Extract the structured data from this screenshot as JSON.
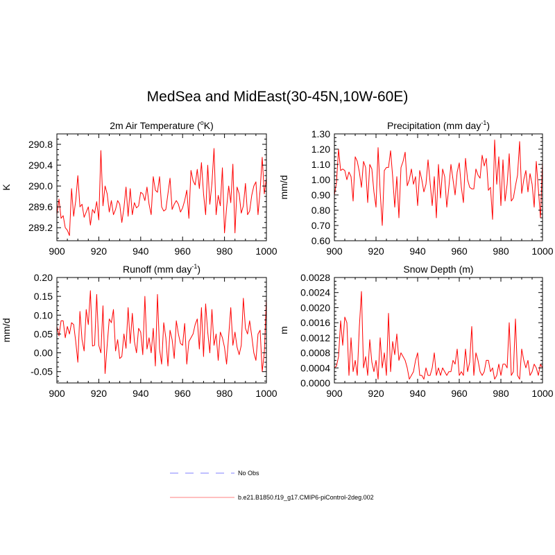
{
  "title": "MedSea and MidEast(30-45N,10W-60E)",
  "colors": {
    "series": "#ff0000",
    "obs": "#9999ff",
    "axes": "#000000"
  },
  "legend": {
    "obs_label": "No Obs",
    "model_label": "b.e21.B1850.f19_g17.CMIP6-piControl-2deg.002"
  },
  "chart_data": [
    {
      "type": "line",
      "title_main": "2m Air Temperature (",
      "title_sup": "o",
      "title_tail": "K)",
      "ylabel": "K",
      "xlim": [
        900,
        1000
      ],
      "ylim": [
        288.95,
        291.0
      ],
      "xticks": [
        "900",
        "920",
        "940",
        "960",
        "980",
        "1000"
      ],
      "yticks": [
        "289.2",
        "289.6",
        "290.0",
        "290.4",
        "290.8"
      ],
      "x_start": 900,
      "values": [
        289.45,
        289.75,
        289.38,
        289.43,
        289.2,
        289.15,
        289.05,
        289.95,
        289.42,
        289.72,
        290.2,
        289.6,
        289.65,
        289.4,
        289.5,
        289.6,
        289.25,
        289.55,
        289.48,
        289.7,
        289.35,
        290.68,
        289.62,
        290.0,
        289.85,
        289.5,
        289.72,
        289.45,
        289.55,
        289.72,
        289.65,
        289.3,
        289.58,
        289.98,
        289.42,
        289.95,
        289.45,
        289.68,
        289.58,
        289.62,
        289.88,
        289.85,
        289.72,
        289.98,
        289.65,
        289.45,
        290.18,
        289.92,
        289.88,
        290.18,
        289.6,
        289.52,
        289.55,
        289.85,
        290.15,
        289.55,
        289.65,
        289.72,
        289.65,
        289.5,
        289.58,
        289.72,
        289.92,
        289.38,
        290.3,
        290.1,
        290.02,
        290.32,
        289.95,
        290.45,
        289.85,
        289.45,
        290.4,
        289.65,
        290.05,
        290.72,
        289.45,
        289.82,
        289.62,
        290.35,
        289.1,
        289.58,
        290.0,
        289.68,
        290.42,
        289.1,
        289.98,
        289.85,
        289.48,
        289.62,
        290.05,
        289.45,
        289.52,
        289.82,
        290.0,
        290.08,
        289.45,
        289.92,
        290.55,
        289.85,
        290.15
      ]
    },
    {
      "type": "line",
      "title_main": "Precipitation (mm day",
      "title_sup": "-1",
      "title_tail": ")",
      "ylabel": "mm/d",
      "xlim": [
        900,
        1000
      ],
      "ylim": [
        0.6,
        1.3
      ],
      "xticks": [
        "900",
        "920",
        "940",
        "960",
        "980",
        "1000"
      ],
      "yticks": [
        "0.60",
        "0.70",
        "0.80",
        "0.90",
        "1.00",
        "1.10",
        "1.20",
        "1.30"
      ],
      "x_start": 900,
      "values": [
        0.9,
        0.98,
        1.2,
        1.06,
        1.07,
        1.06,
        1.0,
        1.05,
        1.02,
        0.86,
        1.15,
        1.12,
        1.05,
        0.95,
        1.12,
        1.08,
        0.85,
        1.1,
        1.07,
        0.92,
        0.82,
        1.21,
        0.92,
        0.7,
        1.06,
        1.08,
        1.08,
        1.19,
        1.02,
        0.82,
        1.02,
        0.75,
        1.08,
        1.12,
        1.18,
        0.96,
        1.0,
        1.07,
        0.97,
        1.02,
        0.83,
        1.06,
        1.0,
        0.92,
        0.97,
        1.13,
        0.98,
        0.83,
        1.02,
        0.75,
        1.1,
        0.88,
        1.07,
        1.02,
        0.82,
        0.95,
        1.1,
        1.0,
        0.9,
        1.05,
        1.11,
        0.95,
        0.85,
        1.14,
        1.0,
        0.95,
        0.94,
        0.94,
        1.07,
        1.03,
        1.01,
        1.16,
        1.09,
        1.14,
        0.93,
        0.95,
        0.74,
        1.26,
        0.97,
        1.15,
        0.83,
        1.13,
        0.86,
        0.97,
        1.17,
        0.86,
        0.88,
        0.96,
        1.03,
        1.25,
        0.91,
        1.0,
        1.06,
        0.92,
        1.04,
        0.97,
        0.82,
        1.12,
        0.94,
        0.75,
        1.12
      ]
    },
    {
      "type": "line",
      "title_main": "Runoff (mm day",
      "title_sup": "-1",
      "title_tail": ")",
      "ylabel": "mm/d",
      "xlim": [
        900,
        1000
      ],
      "ylim": [
        -0.08,
        0.2
      ],
      "xticks": [
        "900",
        "920",
        "940",
        "960",
        "980",
        "1000"
      ],
      "yticks": [
        "-0.05",
        "0.00",
        "0.05",
        "0.10",
        "0.15",
        "0.20"
      ],
      "x_start": 900,
      "values": [
        0.07,
        0.045,
        0.085,
        0.085,
        0.04,
        0.07,
        0.05,
        0.08,
        0.075,
        0.03,
        -0.025,
        0.11,
        0.035,
        0.005,
        0.115,
        0.075,
        0.165,
        0.018,
        0.02,
        0.155,
        0.02,
        0.0,
        0.125,
        -0.055,
        0.02,
        0.09,
        0.08,
        0.115,
        0.005,
        0.035,
        -0.015,
        -0.01,
        0.05,
        0.012,
        0.12,
        0.025,
        0.105,
        0.03,
        0.0,
        0.065,
        0.055,
        -0.005,
        0.15,
        0.01,
        0.04,
        0.0,
        0.065,
        -0.035,
        0.155,
        0.01,
        -0.03,
        0.08,
        0.04,
        -0.035,
        0.06,
        0.035,
        -0.015,
        0.085,
        0.05,
        0.025,
        0.02,
        0.078,
        -0.03,
        0.03,
        0.04,
        0.05,
        0.075,
        0.09,
        0.01,
        0.12,
        -0.01,
        0.13,
        0.055,
        0.0,
        0.115,
        0.02,
        0.05,
        -0.02,
        0.055,
        0.04,
        0.015,
        -0.03,
        0.045,
        0.12,
        0.02,
        0.055,
        0.015,
        -0.005,
        0.02,
        0.145,
        0.065,
        0.05,
        0.085,
        0.045,
        0.0,
        -0.02,
        0.05,
        0.06,
        -0.05,
        0.0,
        0.145
      ]
    },
    {
      "type": "line",
      "title_main": "Snow Depth (m)",
      "title_sup": "",
      "title_tail": "",
      "ylabel": "m",
      "xlim": [
        900,
        1000
      ],
      "ylim": [
        0.0,
        0.0028
      ],
      "xticks": [
        "900",
        "920",
        "940",
        "960",
        "980",
        "1000"
      ],
      "yticks": [
        "0.0000",
        "0.0004",
        "0.0008",
        "0.0012",
        "0.0016",
        "0.0020",
        "0.0024",
        "0.0028"
      ],
      "x_start": 900,
      "values": [
        0.0004,
        0.00045,
        0.0007,
        0.00165,
        0.001,
        0.00175,
        0.0016,
        0.0002,
        0.0012,
        0.0003,
        0.0006,
        0.0002,
        0.0015,
        0.00243,
        0.0004,
        0.0007,
        0.0002,
        0.00115,
        0.00055,
        0.0003,
        0.0006,
        0.0001,
        0.0012,
        0.0004,
        0.0008,
        0.0002,
        0.00185,
        0.0003,
        0.0011,
        0.00075,
        0.0013,
        0.0006,
        0.0008,
        0.0007,
        0.0006,
        0.0004,
        0.0001,
        0.0002,
        0.0003,
        0.0006,
        0.0008,
        0.0002,
        0.0002,
        0.0001,
        0.0004,
        0.0002,
        0.0002,
        0.0004,
        0.0008,
        0.0002,
        0.0004,
        0.0002,
        0.0004,
        0.0003,
        0.0002,
        0.0003,
        0.0003,
        0.0006,
        0.0005,
        0.0009,
        0.0002,
        0.0003,
        0.0002,
        0.0009,
        0.0003,
        0.00055,
        0.0015,
        0.0002,
        0.0008,
        0.0006,
        0.0003,
        0.0002,
        0.0003,
        0.0006,
        0.0006,
        0.0003,
        0.0004,
        0.0001,
        0.0002,
        0.0005,
        0.0002,
        0.0005,
        0.0005,
        0.0004,
        0.0016,
        0.0002,
        0.0003,
        0.0017,
        0.0002,
        0.0001,
        0.0009,
        0.0006,
        0.0004,
        0.0006,
        0.0002,
        0.0003,
        0.0005,
        0.0004,
        0.0002,
        0.0005,
        0.0004
      ]
    }
  ]
}
